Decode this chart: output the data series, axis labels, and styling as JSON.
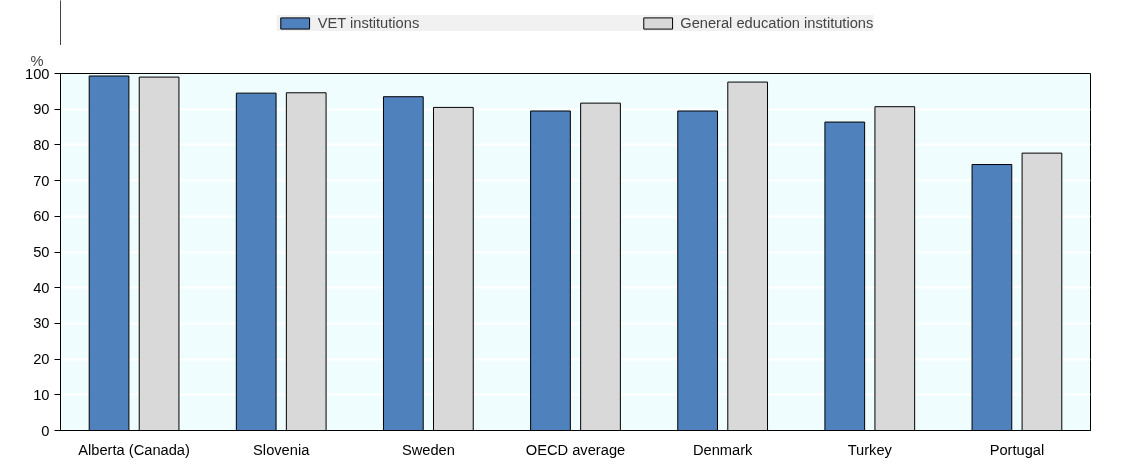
{
  "chart_data": {
    "type": "bar",
    "ylabel": "%",
    "categories": [
      "Alberta (Canada)",
      "Slovenia",
      "Sweden",
      "OECD average",
      "Denmark",
      "Turkey",
      "Portugal"
    ],
    "series": [
      {
        "name": "VET institutions",
        "color": "#4f81bd",
        "values": [
          99.3,
          94.5,
          93.5,
          89.5,
          89.5,
          86.4,
          74.5
        ]
      },
      {
        "name": "General education institutions",
        "color": "#d9d9d9",
        "values": [
          99.0,
          94.6,
          90.5,
          91.7,
          97.6,
          90.7,
          77.7
        ]
      }
    ],
    "ylim": [
      0,
      100
    ],
    "yticks": [
      0,
      10,
      20,
      30,
      40,
      50,
      60,
      70,
      80,
      90,
      100
    ],
    "grid": "y",
    "legend": "top"
  }
}
